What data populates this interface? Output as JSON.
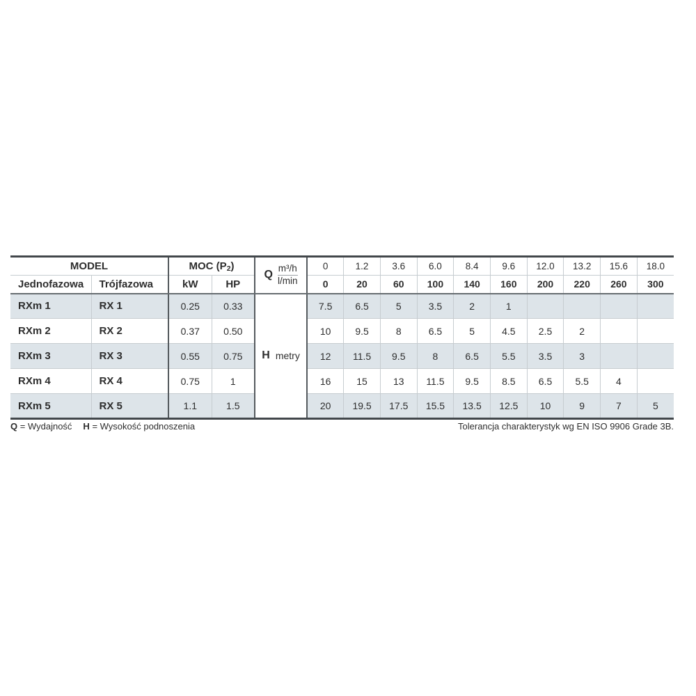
{
  "colors": {
    "row_shade": "#dde4e9",
    "border_light": "#c6ccd0",
    "border_dark": "#42474b",
    "border_mid": "#666c70",
    "border_vdark": "#54595d",
    "text": "#2d2d2d"
  },
  "table": {
    "header": {
      "model": "MODEL",
      "moc_prefix": "MOC (P",
      "moc_sub": "2",
      "moc_suffix": ")",
      "col_single_phase": "Jednofazowa",
      "col_three_phase": "Trójfazowa",
      "col_kw": "kW",
      "col_hp": "HP",
      "q_symbol": "Q",
      "q_unit_top": "m³/h",
      "q_unit_bottom": "l/min",
      "flow_m3h": [
        "0",
        "1.2",
        "3.6",
        "6.0",
        "8.4",
        "9.6",
        "12.0",
        "13.2",
        "15.6",
        "18.0"
      ],
      "flow_lmin": [
        "0",
        "20",
        "60",
        "100",
        "140",
        "160",
        "200",
        "220",
        "260",
        "300"
      ]
    },
    "head_symbol": "H",
    "head_unit": "metry",
    "rows": [
      {
        "jedno": "RXm 1",
        "troj": "RX 1",
        "kw": "0.25",
        "hp": "0.33",
        "values": [
          "7.5",
          "6.5",
          "5",
          "3.5",
          "2",
          "1",
          "",
          "",
          "",
          ""
        ]
      },
      {
        "jedno": "RXm 2",
        "troj": "RX 2",
        "kw": "0.37",
        "hp": "0.50",
        "values": [
          "10",
          "9.5",
          "8",
          "6.5",
          "5",
          "4.5",
          "2.5",
          "2",
          "",
          ""
        ]
      },
      {
        "jedno": "RXm 3",
        "troj": "RX 3",
        "kw": "0.55",
        "hp": "0.75",
        "values": [
          "12",
          "11.5",
          "9.5",
          "8",
          "6.5",
          "5.5",
          "3.5",
          "3",
          "",
          ""
        ]
      },
      {
        "jedno": "RXm 4",
        "troj": "RX 4",
        "kw": "0.75",
        "hp": "1",
        "values": [
          "16",
          "15",
          "13",
          "11.5",
          "9.5",
          "8.5",
          "6.5",
          "5.5",
          "4",
          ""
        ]
      },
      {
        "jedno": "RXm 5",
        "troj": "RX 5",
        "kw": "1.1",
        "hp": "1.5",
        "values": [
          "20",
          "19.5",
          "17.5",
          "15.5",
          "13.5",
          "12.5",
          "10",
          "9",
          "7",
          "5"
        ]
      }
    ]
  },
  "footer": {
    "q_label": "Q",
    "q_text": "= Wydajność",
    "h_label": "H",
    "h_text": "= Wysokość podnoszenia",
    "right": "Tolerancja charakterystyk wg EN ISO 9906 Grade 3B."
  }
}
